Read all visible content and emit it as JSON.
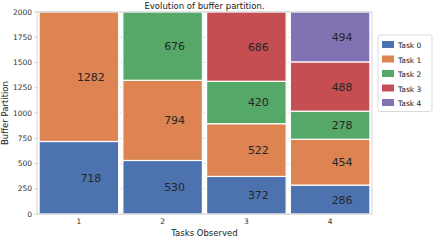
{
  "chart_data": {
    "type": "bar",
    "title": "Evolution of buffer partition.",
    "x_label": "Tasks Observed",
    "y_label": "Buffer Partition",
    "categories": [
      "1",
      "2",
      "3",
      "4"
    ],
    "series": [
      {
        "name": "Task 0",
        "color": "#4c72b0",
        "values": [
          718,
          530,
          372,
          286
        ]
      },
      {
        "name": "Task 1",
        "color": "#dd8452",
        "values": [
          1282,
          794,
          522,
          454
        ]
      },
      {
        "name": "Task 2",
        "color": "#55a868",
        "values": [
          null,
          676,
          420,
          278
        ]
      },
      {
        "name": "Task 3",
        "color": "#c44e52",
        "values": [
          null,
          null,
          686,
          488
        ]
      },
      {
        "name": "Task 4",
        "color": "#8172b3",
        "values": [
          null,
          null,
          null,
          494
        ]
      }
    ],
    "ylim": [
      0,
      2000
    ],
    "yticks": [
      0,
      250,
      500,
      750,
      1000,
      1250,
      1500,
      1750,
      2000
    ],
    "stacked": true,
    "grid": true,
    "data_labels": true,
    "legend": "right"
  }
}
